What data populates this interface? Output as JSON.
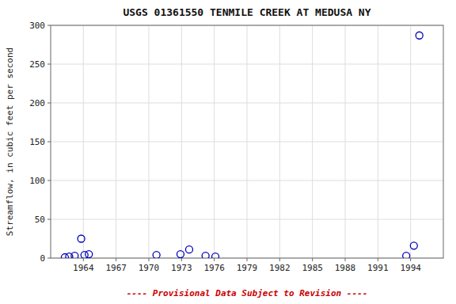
{
  "chart_data": {
    "type": "scatter",
    "title": "USGS 01361550 TENMILE CREEK AT MEDUSA NY",
    "y_label": "Streamflow, in cubic feet per second",
    "x": [
      1962.3,
      1962.7,
      1963.2,
      1963.8,
      1964.1,
      1964.5,
      1970.7,
      1972.9,
      1973.7,
      1975.2,
      1976.1,
      1993.6,
      1994.3,
      1994.8
    ],
    "values": [
      1,
      2,
      3,
      25,
      4,
      5,
      4,
      5,
      11,
      3,
      2,
      3,
      16,
      287
    ],
    "color": "#0000bb",
    "marker": "open-circle",
    "xlim": [
      1961,
      1997
    ],
    "ylim": [
      0,
      300
    ],
    "xticks": [
      1964,
      1967,
      1970,
      1973,
      1976,
      1979,
      1982,
      1985,
      1988,
      1991,
      1994
    ],
    "yticks": [
      0,
      50,
      100,
      150,
      200,
      250,
      300
    ],
    "grid": true,
    "footnote": "---- Provisional Data Subject to Revision ----"
  }
}
